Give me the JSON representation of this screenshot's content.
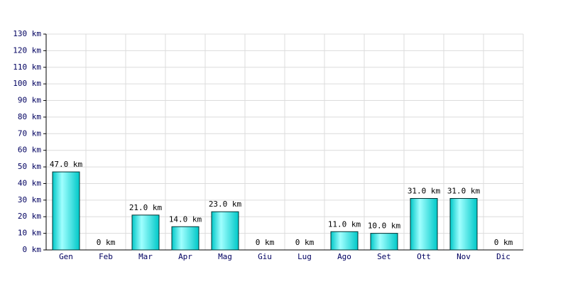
{
  "chart_data": {
    "type": "bar",
    "categories": [
      "Gen",
      "Feb",
      "Mar",
      "Apr",
      "Mag",
      "Giu",
      "Lug",
      "Ago",
      "Set",
      "Ott",
      "Nov",
      "Dic"
    ],
    "values": [
      47,
      0,
      21,
      14,
      23,
      0,
      0,
      11,
      10,
      31,
      31,
      0
    ],
    "value_labels": [
      "47.0 km",
      "0 km",
      "21.0 km",
      "14.0 km",
      "23.0 km",
      "0 km",
      "0 km",
      "11.0 km",
      "10.0 km",
      "31.0 km",
      "31.0 km",
      "0 km"
    ],
    "color": "#00c8c8",
    "ylim": [
      0,
      130
    ],
    "yticks": [
      {
        "value": 0,
        "label": "0 km"
      },
      {
        "value": 10,
        "label": "10 km"
      },
      {
        "value": 20,
        "label": "20 km"
      },
      {
        "value": 30,
        "label": "30 km"
      },
      {
        "value": 40,
        "label": "40 km"
      },
      {
        "value": 50,
        "label": "50 km"
      },
      {
        "value": 60,
        "label": "60 km"
      },
      {
        "value": 70,
        "label": "70 km"
      },
      {
        "value": 80,
        "label": "80 km"
      },
      {
        "value": 90,
        "label": "90 km"
      },
      {
        "value": 100,
        "label": "100 km"
      },
      {
        "value": 110,
        "label": "110 km"
      },
      {
        "value": 120,
        "label": "120 km"
      },
      {
        "value": 130,
        "label": "130 km"
      }
    ],
    "grid": true
  }
}
